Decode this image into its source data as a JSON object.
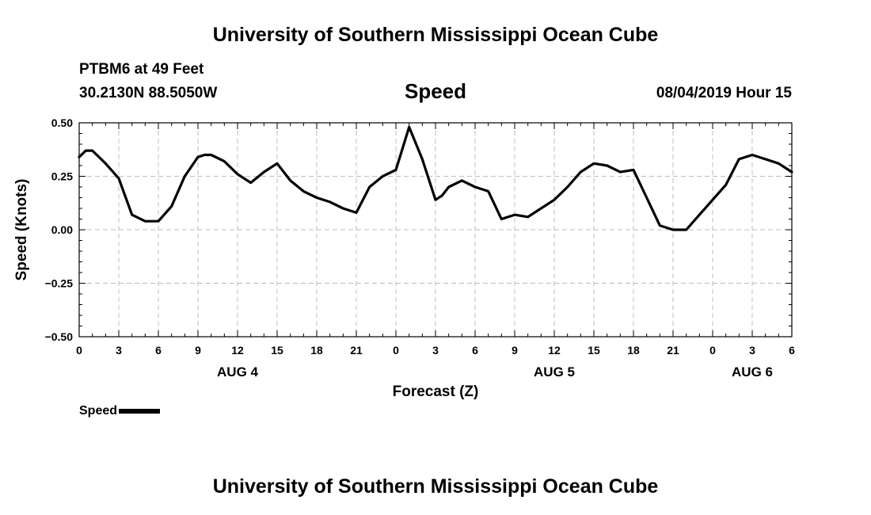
{
  "header": {
    "title": "University of Southern Mississippi Ocean Cube",
    "station": "PTBM6 at 49 Feet",
    "coords": "30.2130N 88.5050W",
    "datetime": "08/04/2019 Hour 15"
  },
  "footer": {
    "title": "University of Southern Mississippi Ocean Cube"
  },
  "chart_data": {
    "type": "line",
    "title": "Speed",
    "xlabel": "Forecast (Z)",
    "ylabel": "Speed (Knots)",
    "ylim": [
      -0.5,
      0.5
    ],
    "yticks": [
      "0.50",
      "0.25",
      "0.00",
      "−0.25",
      "−0.50"
    ],
    "ytick_values": [
      0.5,
      0.25,
      0.0,
      -0.25,
      -0.5
    ],
    "xlim_hours": [
      0,
      54
    ],
    "xtick_hours": [
      0,
      3,
      6,
      9,
      12,
      15,
      18,
      21,
      24,
      27,
      30,
      33,
      36,
      39,
      42,
      45,
      48,
      51,
      54
    ],
    "xtick_labels": [
      "0",
      "3",
      "6",
      "9",
      "12",
      "15",
      "18",
      "21",
      "0",
      "3",
      "6",
      "9",
      "12",
      "15",
      "18",
      "21",
      "0",
      "3",
      "6"
    ],
    "date_labels": [
      {
        "label": "AUG 4",
        "hour": 12
      },
      {
        "label": "AUG 5",
        "hour": 36
      },
      {
        "label": "AUG 6",
        "hour": 51
      }
    ],
    "grid": true,
    "legend": "bottom-left",
    "series": [
      {
        "name": "Speed",
        "color": "#000000",
        "x": [
          0,
          0.5,
          1,
          2,
          3,
          4,
          5,
          6,
          7,
          8,
          9,
          9.5,
          10,
          11,
          12,
          13,
          14,
          15,
          16,
          17,
          18,
          19,
          20,
          21,
          22,
          23,
          24,
          25,
          26,
          27,
          27.5,
          28,
          29,
          30,
          31,
          32,
          33,
          34,
          35,
          36,
          37,
          38,
          39,
          40,
          41,
          42,
          43,
          44,
          45,
          46,
          47,
          48,
          49,
          50,
          51,
          52,
          53,
          54
        ],
        "y": [
          0.34,
          0.37,
          0.37,
          0.31,
          0.24,
          0.07,
          0.04,
          0.04,
          0.11,
          0.25,
          0.34,
          0.35,
          0.35,
          0.32,
          0.26,
          0.22,
          0.27,
          0.31,
          0.23,
          0.18,
          0.15,
          0.13,
          0.1,
          0.08,
          0.2,
          0.25,
          0.28,
          0.48,
          0.33,
          0.14,
          0.16,
          0.2,
          0.23,
          0.2,
          0.18,
          0.05,
          0.07,
          0.06,
          0.1,
          0.14,
          0.2,
          0.27,
          0.31,
          0.3,
          0.27,
          0.28,
          0.15,
          0.02,
          0.0,
          0.0,
          0.07,
          0.14,
          0.21,
          0.33,
          0.35,
          0.33,
          0.31,
          0.27
        ]
      }
    ]
  },
  "legend": {
    "label": "Speed"
  }
}
